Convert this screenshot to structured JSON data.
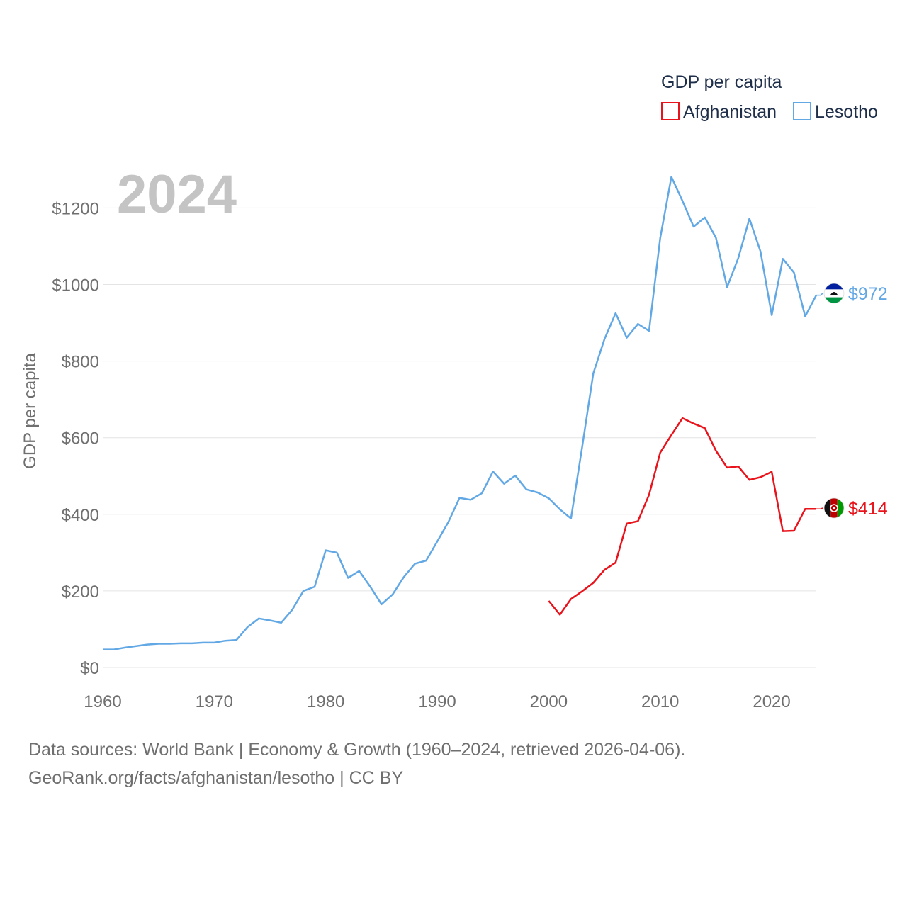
{
  "chart_data": {
    "type": "line",
    "title": "GDP per capita",
    "legend_title": "GDP per capita",
    "legend_position": "top-right",
    "year_label": "2024",
    "ylabel": "GDP per capita",
    "xlabel": "",
    "xlim": [
      1960,
      2024
    ],
    "ylim": [
      0,
      1200
    ],
    "x_ticks": [
      1960,
      1970,
      1980,
      1990,
      2000,
      2010,
      2020
    ],
    "y_ticks": [
      0,
      200,
      400,
      600,
      800,
      1000,
      1200
    ],
    "y_tick_labels": [
      "$0",
      "$200",
      "$400",
      "$600",
      "$800",
      "$1000",
      "$1200"
    ],
    "grid": true,
    "series": [
      {
        "name": "Afghanistan",
        "color": "#e8131b",
        "end_label": "$414",
        "flag_icon": "afghanistan-flag-icon",
        "x": [
          2000,
          2001,
          2002,
          2003,
          2004,
          2005,
          2006,
          2007,
          2008,
          2009,
          2010,
          2011,
          2012,
          2013,
          2014,
          2015,
          2016,
          2017,
          2018,
          2019,
          2020,
          2021,
          2022,
          2023,
          2024
        ],
        "values": [
          174,
          138,
          179,
          199,
          221,
          255,
          274,
          376,
          382,
          451,
          561,
          607,
          651,
          637,
          625,
          566,
          522,
          525,
          490,
          497,
          511,
          356,
          357,
          414,
          414
        ]
      },
      {
        "name": "Lesotho",
        "color": "#62a8e5",
        "end_label": "$972",
        "flag_icon": "lesotho-flag-icon",
        "x": [
          1960,
          1961,
          1962,
          1963,
          1964,
          1965,
          1966,
          1967,
          1968,
          1969,
          1970,
          1971,
          1972,
          1973,
          1974,
          1975,
          1976,
          1977,
          1978,
          1979,
          1980,
          1981,
          1982,
          1983,
          1984,
          1985,
          1986,
          1987,
          1988,
          1989,
          1990,
          1991,
          1992,
          1993,
          1994,
          1995,
          1996,
          1997,
          1998,
          1999,
          2000,
          2001,
          2002,
          2003,
          2004,
          2005,
          2006,
          2007,
          2008,
          2009,
          2010,
          2011,
          2012,
          2013,
          2014,
          2015,
          2016,
          2017,
          2018,
          2019,
          2020,
          2021,
          2022,
          2023,
          2024
        ],
        "values": [
          47,
          47,
          52,
          56,
          60,
          62,
          62,
          63,
          63,
          65,
          65,
          70,
          72,
          106,
          128,
          123,
          117,
          151,
          200,
          211,
          306,
          300,
          234,
          252,
          211,
          165,
          191,
          236,
          271,
          279,
          329,
          380,
          443,
          438,
          455,
          512,
          480,
          501,
          465,
          457,
          442,
          413,
          389,
          576,
          768,
          857,
          925,
          861,
          897,
          879,
          1121,
          1281,
          1218,
          1151,
          1175,
          1122,
          993,
          1069,
          1172,
          1086,
          920,
          1067,
          1031,
          917,
          972
        ]
      }
    ]
  },
  "footer": {
    "source_line": "Data sources: World Bank | Economy & Growth (1960–2024, retrieved 2026-04-06).",
    "url_line": "GeoRank.org/facts/afghanistan/lesotho | CC BY"
  }
}
